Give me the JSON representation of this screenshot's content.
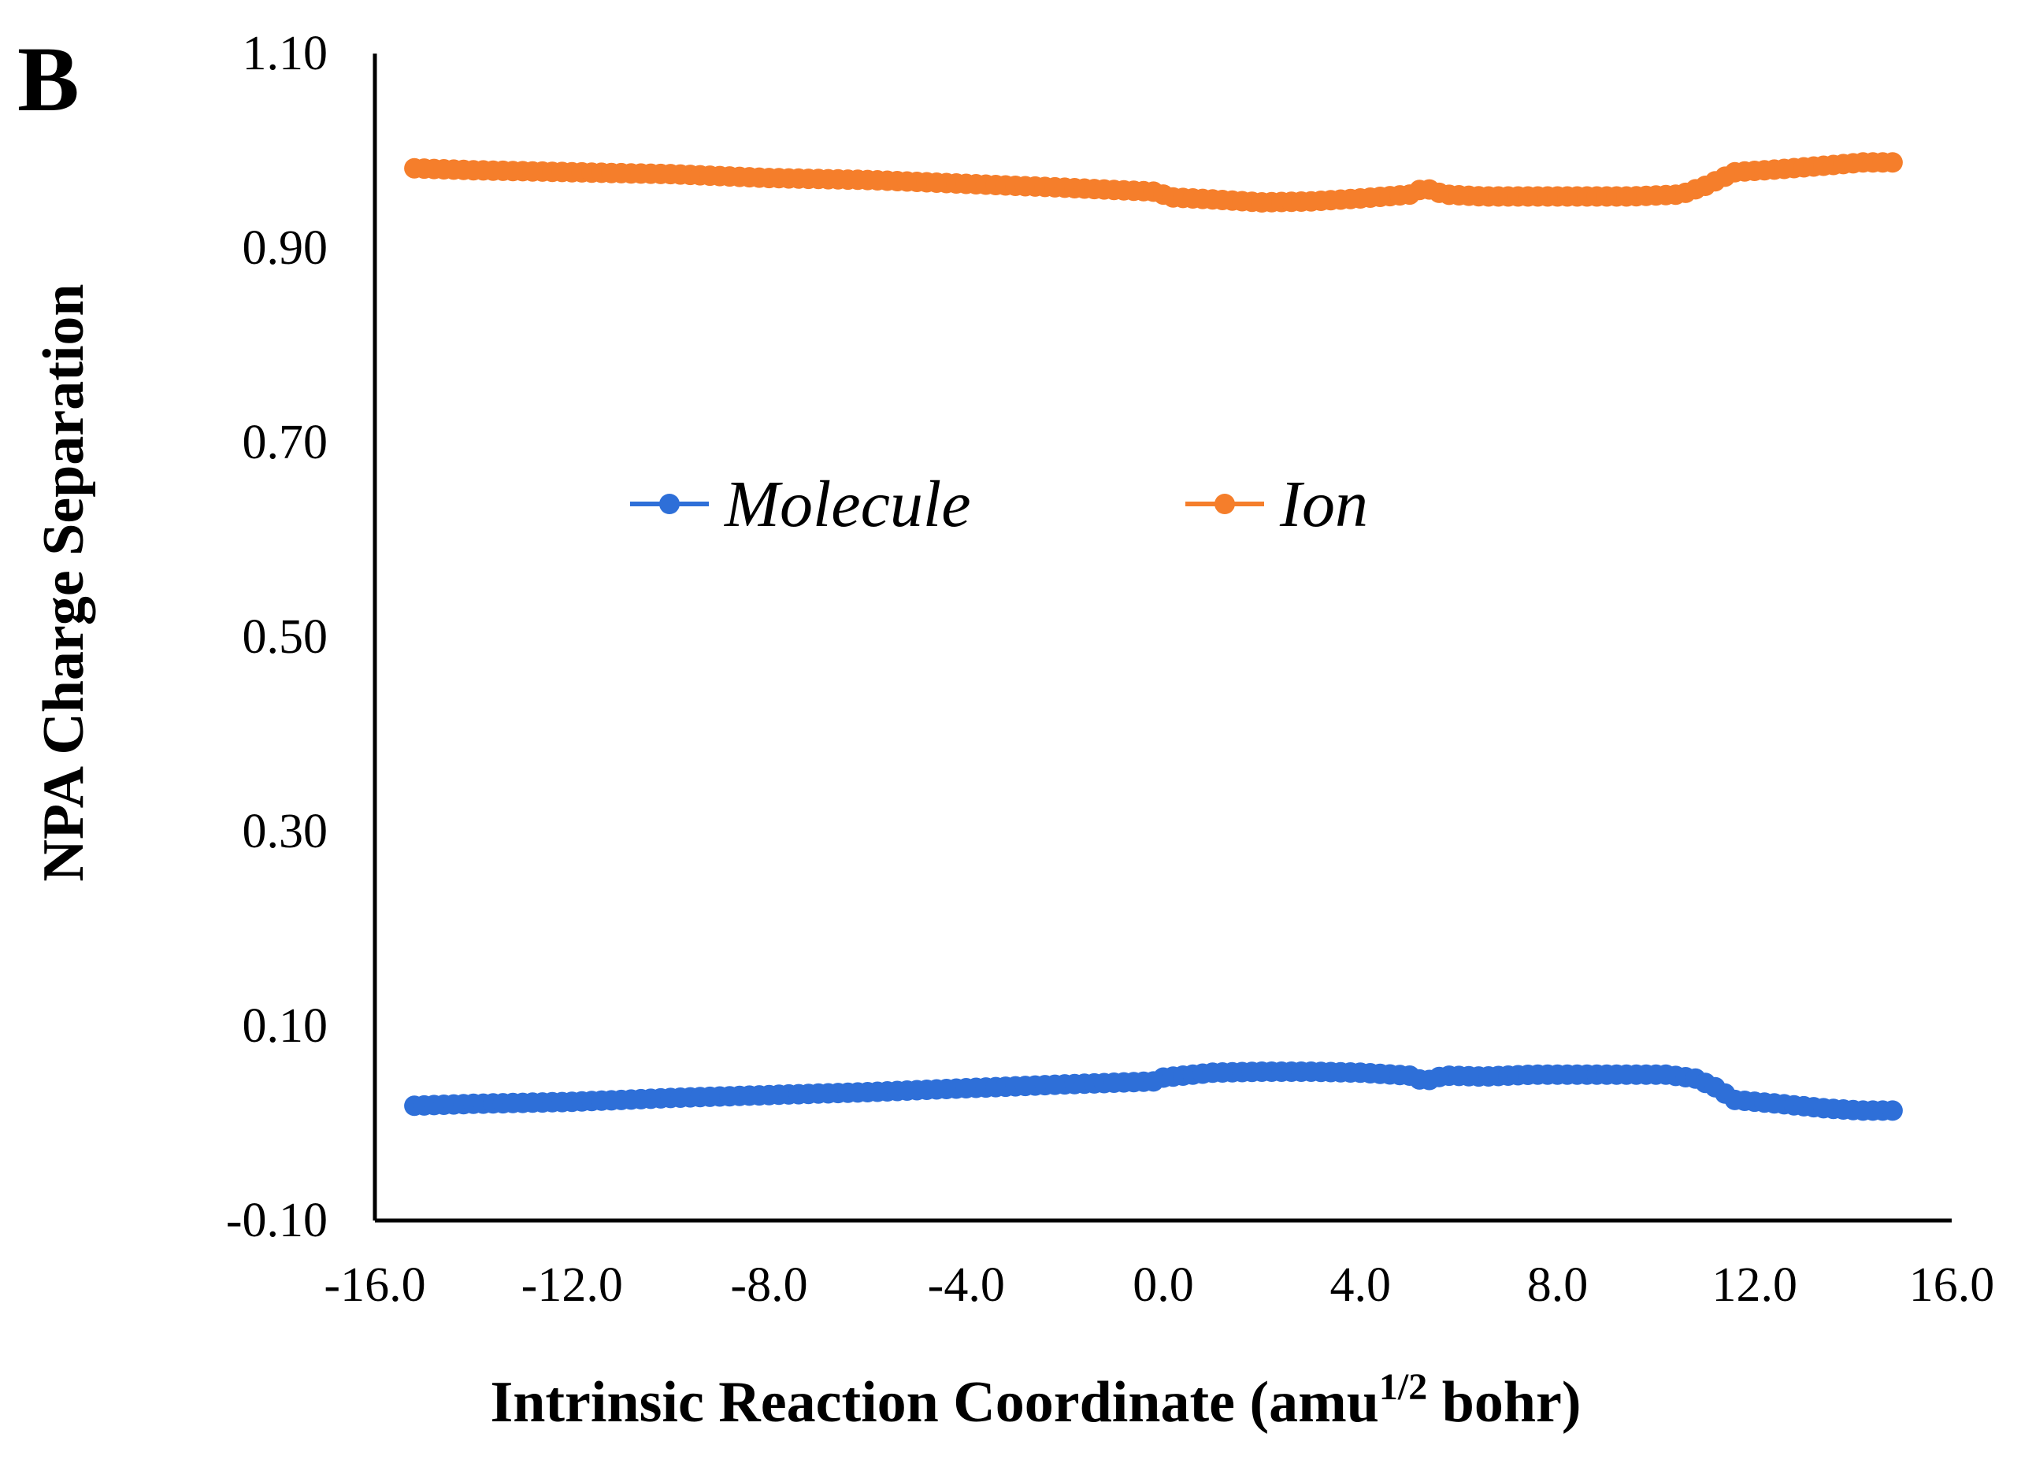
{
  "panel_label": "B",
  "colors": {
    "molecule": "#2E6FD8",
    "ion": "#F57E2B",
    "axis": "#000000"
  },
  "chart_data": {
    "type": "line",
    "title": "",
    "xlabel": "Intrinsic  Reaction Coordinate  (amu",
    "xlabel_sup": "1/2",
    "xlabel_suffix": " bohr)",
    "ylabel": "NPA Charge Separation",
    "xlim": [
      -16.0,
      16.0
    ],
    "ylim": [
      -0.1,
      1.1
    ],
    "x_ticks": [
      {
        "value": -16,
        "label": "-16.0"
      },
      {
        "value": -12,
        "label": "-12.0"
      },
      {
        "value": -8,
        "label": "-8.0"
      },
      {
        "value": -4,
        "label": "-4.0"
      },
      {
        "value": 0,
        "label": "0.0"
      },
      {
        "value": 4,
        "label": "4.0"
      },
      {
        "value": 8,
        "label": "8.0"
      },
      {
        "value": 12,
        "label": "12.0"
      },
      {
        "value": 16,
        "label": "16.0"
      }
    ],
    "y_ticks": [
      {
        "value": -0.1,
        "label": "-0.10"
      },
      {
        "value": 0.1,
        "label": "0.10"
      },
      {
        "value": 0.3,
        "label": "0.30"
      },
      {
        "value": 0.5,
        "label": "0.50"
      },
      {
        "value": 0.7,
        "label": "0.70"
      },
      {
        "value": 0.9,
        "label": "0.90"
      },
      {
        "value": 1.1,
        "label": "1.10"
      }
    ],
    "grid": false,
    "legend_position": "center-left",
    "series": [
      {
        "name": "Molecule",
        "color": "#2E6FD8",
        "points": [
          [
            -15.2,
            0.018
          ],
          [
            -14.0,
            0.02
          ],
          [
            -12.0,
            0.022
          ],
          [
            -10.0,
            0.026
          ],
          [
            -8.0,
            0.029
          ],
          [
            -6.0,
            0.032
          ],
          [
            -4.0,
            0.036
          ],
          [
            -2.0,
            0.04
          ],
          [
            -0.2,
            0.043
          ],
          [
            0.0,
            0.047
          ],
          [
            1.0,
            0.052
          ],
          [
            2.0,
            0.053
          ],
          [
            3.0,
            0.053
          ],
          [
            4.0,
            0.052
          ],
          [
            5.0,
            0.049
          ],
          [
            5.3,
            0.043
          ],
          [
            5.7,
            0.049
          ],
          [
            6.5,
            0.048
          ],
          [
            7.5,
            0.05
          ],
          [
            9.0,
            0.05
          ],
          [
            10.2,
            0.05
          ],
          [
            10.8,
            0.046
          ],
          [
            11.2,
            0.037
          ],
          [
            11.6,
            0.024
          ],
          [
            12.5,
            0.02
          ],
          [
            13.5,
            0.015
          ],
          [
            14.2,
            0.013
          ],
          [
            14.8,
            0.013
          ]
        ]
      },
      {
        "name": "Ion",
        "color": "#F57E2B",
        "points": [
          [
            -15.2,
            0.982
          ],
          [
            -14.0,
            0.98
          ],
          [
            -12.0,
            0.978
          ],
          [
            -10.0,
            0.976
          ],
          [
            -8.0,
            0.972
          ],
          [
            -6.0,
            0.97
          ],
          [
            -4.0,
            0.966
          ],
          [
            -2.0,
            0.962
          ],
          [
            -0.2,
            0.958
          ],
          [
            0.2,
            0.952
          ],
          [
            1.0,
            0.95
          ],
          [
            2.0,
            0.947
          ],
          [
            3.0,
            0.948
          ],
          [
            4.0,
            0.951
          ],
          [
            5.0,
            0.955
          ],
          [
            5.3,
            0.962
          ],
          [
            5.7,
            0.955
          ],
          [
            6.5,
            0.953
          ],
          [
            8.0,
            0.953
          ],
          [
            9.5,
            0.953
          ],
          [
            10.5,
            0.955
          ],
          [
            11.0,
            0.964
          ],
          [
            11.6,
            0.978
          ],
          [
            12.5,
            0.981
          ],
          [
            13.5,
            0.985
          ],
          [
            14.2,
            0.988
          ],
          [
            14.8,
            0.988
          ]
        ]
      }
    ]
  }
}
